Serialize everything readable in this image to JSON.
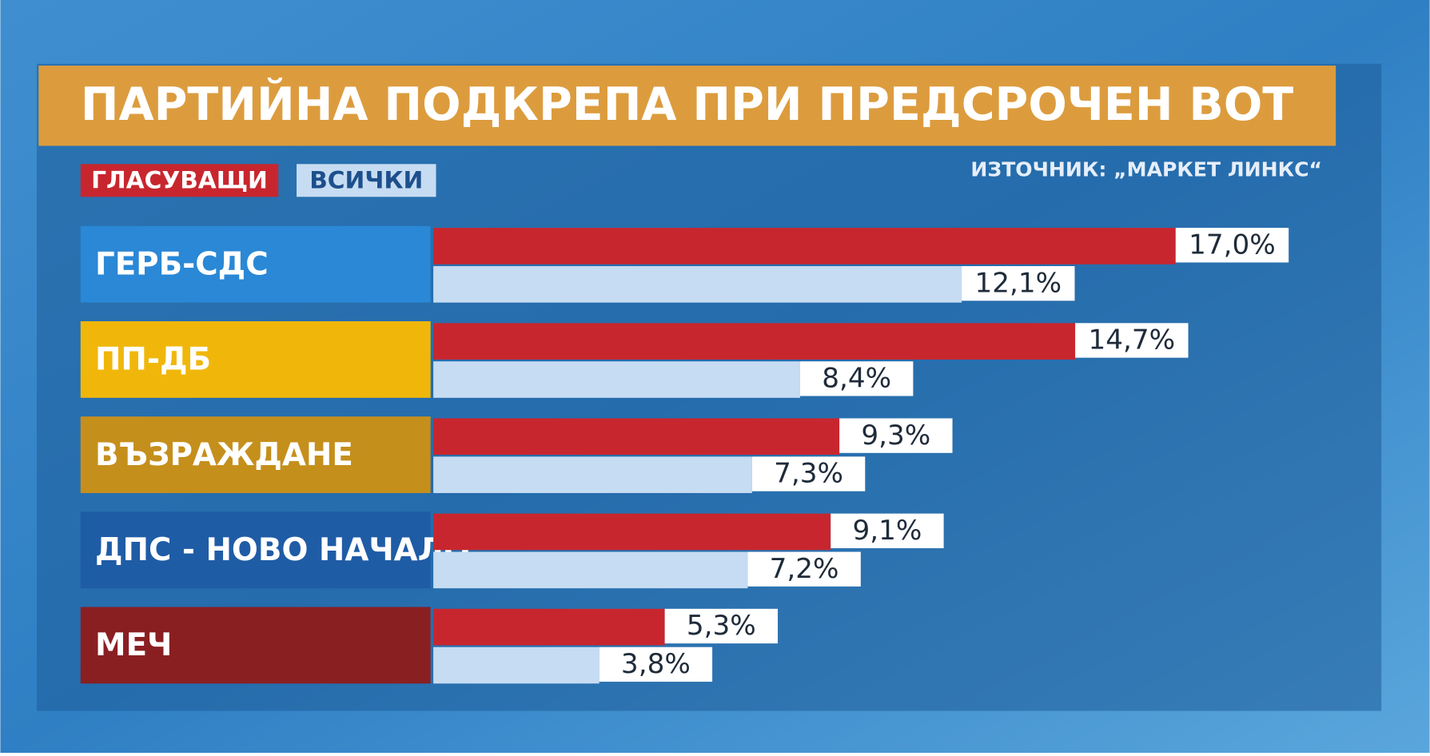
{
  "chart_data": {
    "type": "bar",
    "title": "ПАРТИЙНА ПОДКРЕПА ПРИ ПРЕДСРОЧЕН ВОТ",
    "source": "ИЗТОЧНИК: „МАРКЕТ ЛИНКС“",
    "categories": [
      "ГЕРБ-СДС",
      "ПП-ДБ",
      "ВЪЗРАЖДАНЕ",
      "ДПС - НОВО НАЧАЛО",
      "МЕЧ"
    ],
    "category_colors": [
      "#2a88d6",
      "#f0b70a",
      "#c58f1c",
      "#1f5ca6",
      "#8a1f22"
    ],
    "series": [
      {
        "name": "ГЛАСУВАЩИ",
        "color": "#c8262e",
        "values": [
          17.0,
          14.7,
          9.3,
          9.1,
          5.3
        ],
        "value_labels": [
          "17,0%",
          "14,7%",
          "9,3%",
          "9,1%",
          "5,3%"
        ]
      },
      {
        "name": "ВСИЧКИ",
        "color": "#c6dcf2",
        "values": [
          12.1,
          8.4,
          7.3,
          7.2,
          3.8
        ],
        "value_labels": [
          "12,1%",
          "8,4%",
          "7,3%",
          "7,2%",
          "3,8%"
        ]
      }
    ]
  }
}
